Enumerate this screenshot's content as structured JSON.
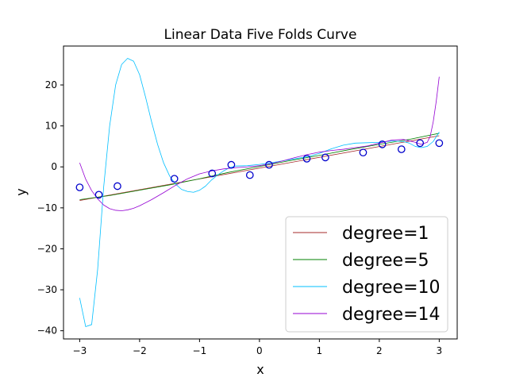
{
  "chart_data": {
    "type": "line",
    "title": "Linear Data Five Folds Curve",
    "xlabel": "x",
    "ylabel": "y",
    "xlim": [
      -3.27,
      3.3
    ],
    "ylim": [
      -42,
      29.5
    ],
    "xticks": [
      -3,
      -2,
      -1,
      0,
      1,
      2,
      3
    ],
    "xtick_labels": [
      "−3",
      "−2",
      "−1",
      "0",
      "1",
      "2",
      "3"
    ],
    "yticks": [
      -40,
      -30,
      -20,
      -10,
      0,
      10,
      20
    ],
    "ytick_labels": [
      "−40",
      "−30",
      "−20",
      "−10",
      "0",
      "10",
      "20"
    ],
    "grid": false,
    "legend_position": "lower-right",
    "points": {
      "marker": "open-circle",
      "color": "#0000cc",
      "x": [
        -3.0,
        -2.68,
        -2.37,
        -1.42,
        -0.79,
        -0.47,
        -0.16,
        0.16,
        0.79,
        1.1,
        1.73,
        2.05,
        2.37,
        2.68,
        3.0
      ],
      "y": [
        -5.0,
        -6.8,
        -4.7,
        -2.9,
        -1.6,
        0.5,
        -2.0,
        0.5,
        2.0,
        2.3,
        3.5,
        5.5,
        4.3,
        5.8,
        5.8
      ]
    },
    "series": [
      {
        "name": "degree=1",
        "color": "#a52a2a",
        "x": [
          -3.0,
          3.0
        ],
        "y": [
          -8.2,
          7.6
        ]
      },
      {
        "name": "degree=5",
        "color": "#008000",
        "x": [
          -3.0,
          -2.5,
          -2.0,
          -1.5,
          -1.0,
          -0.5,
          0.0,
          0.5,
          1.0,
          1.5,
          2.0,
          2.5,
          3.0
        ],
        "y": [
          -8.0,
          -7.0,
          -5.7,
          -4.4,
          -2.9,
          -1.3,
          0.1,
          1.5,
          2.8,
          4.2,
          5.5,
          6.7,
          8.2
        ]
      },
      {
        "name": "degree=10",
        "color": "#00bfff",
        "x": [
          -3.0,
          -2.9,
          -2.8,
          -2.7,
          -2.6,
          -2.5,
          -2.4,
          -2.3,
          -2.2,
          -2.1,
          -2.0,
          -1.9,
          -1.8,
          -1.7,
          -1.6,
          -1.5,
          -1.4,
          -1.3,
          -1.2,
          -1.1,
          -1.0,
          -0.9,
          -0.8,
          -0.7,
          -0.6,
          -0.5,
          -0.4,
          -0.2,
          0.0,
          0.2,
          0.4,
          0.6,
          0.8,
          1.0,
          1.2,
          1.4,
          1.6,
          1.8,
          2.0,
          2.2,
          2.4,
          2.5,
          2.6,
          2.7,
          2.8,
          2.9,
          3.0
        ],
        "y": [
          -32.0,
          -39.0,
          -38.5,
          -25.0,
          -5.0,
          10.0,
          20.0,
          25.0,
          26.5,
          25.8,
          22.5,
          17.0,
          11.0,
          5.5,
          1.0,
          -2.2,
          -4.2,
          -5.5,
          -6.0,
          -6.2,
          -5.7,
          -4.7,
          -3.2,
          -2.0,
          -1.0,
          -0.2,
          0.2,
          0.3,
          0.6,
          1.0,
          1.5,
          2.0,
          2.5,
          3.3,
          4.4,
          5.3,
          5.8,
          5.9,
          6.0,
          6.3,
          6.2,
          5.8,
          5.0,
          4.7,
          5.0,
          6.2,
          8.5
        ]
      },
      {
        "name": "degree=14",
        "color": "#9400d3",
        "x": [
          -3.0,
          -2.9,
          -2.8,
          -2.7,
          -2.6,
          -2.5,
          -2.4,
          -2.3,
          -2.2,
          -2.1,
          -2.0,
          -1.8,
          -1.6,
          -1.4,
          -1.2,
          -1.0,
          -0.8,
          -0.6,
          -0.4,
          -0.2,
          0.0,
          0.2,
          0.4,
          0.6,
          0.8,
          1.0,
          1.2,
          1.4,
          1.6,
          1.8,
          2.0,
          2.2,
          2.4,
          2.6,
          2.7,
          2.8,
          2.85,
          2.9,
          2.95,
          3.0
        ],
        "y": [
          1.0,
          -3.0,
          -5.8,
          -7.8,
          -9.3,
          -10.2,
          -10.6,
          -10.7,
          -10.5,
          -10.1,
          -9.5,
          -8.0,
          -6.3,
          -4.5,
          -2.9,
          -1.7,
          -1.0,
          -0.5,
          -0.2,
          0.0,
          0.3,
          0.8,
          1.5,
          2.3,
          3.0,
          3.6,
          4.0,
          4.3,
          4.7,
          5.1,
          5.8,
          6.5,
          6.7,
          6.0,
          5.5,
          6.0,
          7.5,
          11.0,
          16.0,
          22.0
        ]
      }
    ]
  }
}
